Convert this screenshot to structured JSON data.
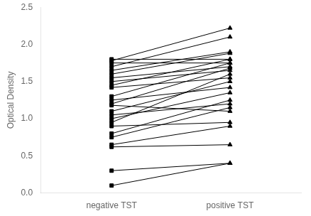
{
  "chart_data": {
    "type": "line",
    "x": [
      0,
      1
    ],
    "xlim": [
      -0.6,
      1.6
    ],
    "xticks": [
      {
        "value": 0,
        "label": "negative TST"
      },
      {
        "value": 1,
        "label": "positive TST"
      }
    ],
    "ylabel": "Optical Density",
    "ylim": [
      0.0,
      2.5
    ],
    "yticks": [
      {
        "value": 0,
        "label": "0.0"
      },
      0.5,
      {
        "value": 1,
        "label": "1.0"
      },
      1.5,
      {
        "value": 2,
        "label": "2.0"
      },
      2.5
    ],
    "grid": false,
    "marker": [
      "square",
      "triangle"
    ],
    "series": [
      {
        "color": "#000000",
        "values": [
          1.8,
          1.8
        ]
      },
      {
        "color": "#000000",
        "values": [
          1.78,
          2.22
        ]
      },
      {
        "color": "#000000",
        "values": [
          1.75,
          1.75
        ]
      },
      {
        "color": "#000000",
        "values": [
          1.7,
          2.1
        ]
      },
      {
        "color": "#000000",
        "values": [
          1.65,
          1.9
        ]
      },
      {
        "color": "#000000",
        "values": [
          1.6,
          1.88
        ]
      },
      {
        "color": "#000000",
        "values": [
          1.55,
          1.7
        ]
      },
      {
        "color": "#000000",
        "values": [
          1.5,
          1.65
        ]
      },
      {
        "color": "#000000",
        "values": [
          1.45,
          1.8
        ]
      },
      {
        "color": "#000000",
        "values": [
          1.42,
          1.55
        ]
      },
      {
        "color": "#000000",
        "values": [
          1.3,
          1.75
        ]
      },
      {
        "color": "#000000",
        "values": [
          1.25,
          1.42
        ]
      },
      {
        "color": "#000000",
        "values": [
          1.2,
          1.68
        ]
      },
      {
        "color": "#000000",
        "values": [
          1.18,
          1.1
        ]
      },
      {
        "color": "#000000",
        "values": [
          1.1,
          1.5
        ]
      },
      {
        "color": "#000000",
        "values": [
          1.05,
          1.2
        ]
      },
      {
        "color": "#000000",
        "values": [
          1.0,
          1.35
        ]
      },
      {
        "color": "#000000",
        "values": [
          0.95,
          1.6
        ]
      },
      {
        "color": "#000000",
        "values": [
          0.9,
          0.95
        ]
      },
      {
        "color": "#000000",
        "values": [
          0.8,
          1.25
        ]
      },
      {
        "color": "#000000",
        "values": [
          0.75,
          1.15
        ]
      },
      {
        "color": "#000000",
        "values": [
          0.65,
          0.9
        ]
      },
      {
        "color": "#000000",
        "values": [
          0.62,
          0.65
        ]
      },
      {
        "color": "#000000",
        "values": [
          0.3,
          0.4
        ]
      },
      {
        "color": "#000000",
        "values": [
          0.1,
          0.4
        ]
      }
    ]
  }
}
